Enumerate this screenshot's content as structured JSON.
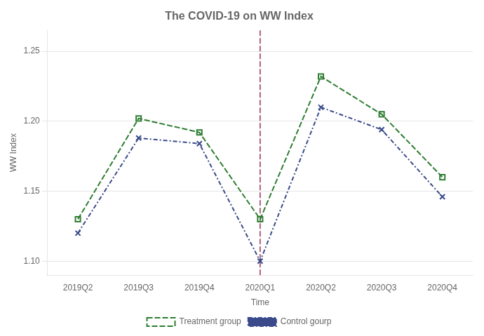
{
  "chart_data": {
    "type": "line",
    "title": "The COVID-19 on WW Index",
    "x_label": "Time",
    "y_label": "WW Index",
    "categories": [
      "2019Q2",
      "2019Q3",
      "2019Q4",
      "2020Q1",
      "2020Q2",
      "2020Q3",
      "2020Q4"
    ],
    "series": [
      {
        "name": "Treatment group",
        "color": "#2e7d32",
        "marker": "square",
        "line_style": "dashed",
        "values": [
          1.13,
          1.202,
          1.192,
          1.13,
          1.232,
          1.205,
          1.16
        ]
      },
      {
        "name": "Control gourp",
        "color": "#3a4a8a",
        "marker": "x",
        "line_style": "dashdot",
        "values": [
          1.12,
          1.188,
          1.184,
          1.1,
          1.21,
          1.194,
          1.146
        ]
      }
    ],
    "vline": {
      "x": "2020Q1",
      "color": "#993355",
      "line_style": "dashed"
    },
    "ylim": [
      1.09,
      1.265
    ],
    "yticks": [
      {
        "value": 1.1,
        "label": "1.10"
      },
      1.15,
      {
        "value": 1.2,
        "label": "1.20"
      },
      1.25
    ],
    "grid": "y",
    "legend": "bottom"
  }
}
